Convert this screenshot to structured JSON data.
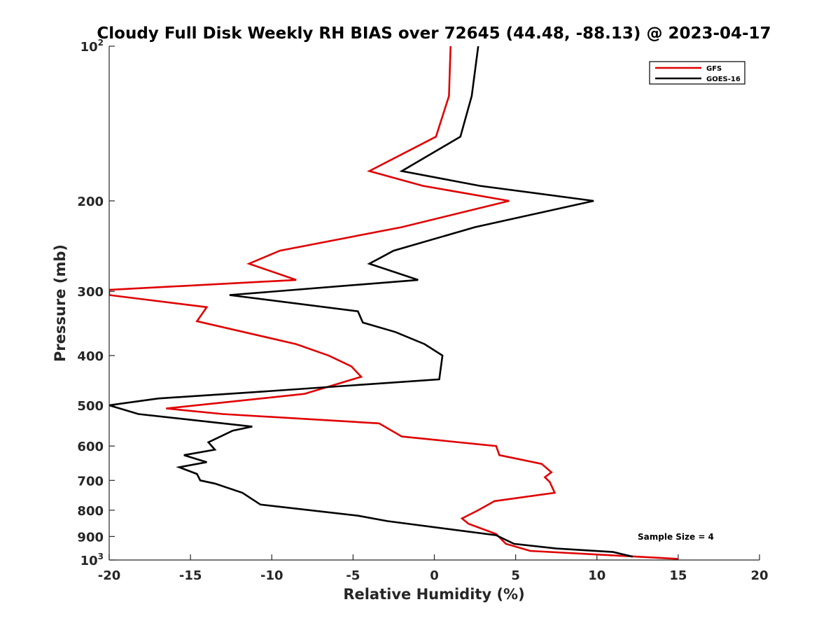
{
  "chart_data": {
    "type": "line",
    "title": "Cloudy Full Disk Weekly RH BIAS over 72645 (44.48, -88.13) @ 2023-04-17",
    "xlabel": "Relative Humidity (%)",
    "ylabel": "Pressure (mb)",
    "xlim": [
      -20,
      20
    ],
    "ylim": [
      100,
      1000
    ],
    "y_scale": "log",
    "y_reversed": true,
    "grid": false,
    "legend_position": "top-right",
    "x_ticks": [
      -20,
      -15,
      -10,
      -5,
      0,
      5,
      10,
      15,
      20
    ],
    "x_tick_labels": [
      "-20",
      "-15",
      "-10",
      "-5",
      "0",
      "5",
      "10",
      "15",
      "20"
    ],
    "y_ticks": [
      {
        "value": 100,
        "base": "10",
        "exp": "2"
      },
      {
        "value": 200,
        "label": "200"
      },
      {
        "value": 300,
        "label": "300"
      },
      {
        "value": 400,
        "label": "400"
      },
      {
        "value": 500,
        "label": "500"
      },
      {
        "value": 600,
        "label": "600"
      },
      {
        "value": 700,
        "label": "700"
      },
      {
        "value": 800,
        "label": "800"
      },
      {
        "value": 900,
        "label": "900"
      },
      {
        "value": 1000,
        "base": "10",
        "exp": "3"
      }
    ],
    "annotation": "Sample Size = 4",
    "series": [
      {
        "name": "GFS",
        "color": "#e00000",
        "points": [
          [
            1.0,
            100
          ],
          [
            0.9,
            125
          ],
          [
            0.1,
            150
          ],
          [
            -4.0,
            175
          ],
          [
            -0.7,
            187
          ],
          [
            4.6,
            200
          ],
          [
            -2.0,
            225
          ],
          [
            -9.5,
            250
          ],
          [
            -11.4,
            265
          ],
          [
            -8.5,
            285
          ],
          [
            -20.0,
            298
          ],
          [
            -20.0,
            305
          ],
          [
            -14.0,
            322
          ],
          [
            -14.6,
            343
          ],
          [
            -8.5,
            380
          ],
          [
            -6.5,
            400
          ],
          [
            -5.1,
            420
          ],
          [
            -4.5,
            440
          ],
          [
            -8.0,
            475
          ],
          [
            -12.0,
            490
          ],
          [
            -16.5,
            507
          ],
          [
            -13.0,
            520
          ],
          [
            -3.4,
            542
          ],
          [
            -2.0,
            575
          ],
          [
            3.8,
            600
          ],
          [
            4.0,
            625
          ],
          [
            6.6,
            650
          ],
          [
            7.2,
            675
          ],
          [
            6.8,
            690
          ],
          [
            7.1,
            705
          ],
          [
            7.4,
            740
          ],
          [
            3.7,
            768
          ],
          [
            2.7,
            800
          ],
          [
            1.7,
            830
          ],
          [
            2.1,
            850
          ],
          [
            3.8,
            890
          ],
          [
            4.4,
            930
          ],
          [
            5.9,
            960
          ],
          [
            15.0,
            995
          ]
        ]
      },
      {
        "name": "GOES-16",
        "color": "#000000",
        "points": [
          [
            2.7,
            100
          ],
          [
            2.3,
            125
          ],
          [
            1.6,
            150
          ],
          [
            -2.0,
            175
          ],
          [
            2.8,
            187
          ],
          [
            9.8,
            200
          ],
          [
            2.5,
            225
          ],
          [
            -2.5,
            250
          ],
          [
            -4.0,
            265
          ],
          [
            -1.0,
            285
          ],
          [
            -12.6,
            305
          ],
          [
            -4.7,
            328
          ],
          [
            -4.4,
            345
          ],
          [
            -2.4,
            360
          ],
          [
            -0.6,
            380
          ],
          [
            0.5,
            400
          ],
          [
            0.3,
            445
          ],
          [
            -10.5,
            470
          ],
          [
            -17.0,
            485
          ],
          [
            -20.0,
            500
          ],
          [
            -18.2,
            520
          ],
          [
            -11.2,
            550
          ],
          [
            -12.4,
            560
          ],
          [
            -13.9,
            590
          ],
          [
            -13.5,
            610
          ],
          [
            -15.4,
            625
          ],
          [
            -14.0,
            645
          ],
          [
            -15.7,
            660
          ],
          [
            -14.6,
            680
          ],
          [
            -14.4,
            700
          ],
          [
            -13.5,
            710
          ],
          [
            -11.8,
            740
          ],
          [
            -10.7,
            780
          ],
          [
            -4.7,
            820
          ],
          [
            -2.9,
            840
          ],
          [
            3.8,
            895
          ],
          [
            4.9,
            930
          ],
          [
            7.5,
            950
          ],
          [
            11.0,
            965
          ],
          [
            12.2,
            985
          ]
        ]
      }
    ]
  }
}
